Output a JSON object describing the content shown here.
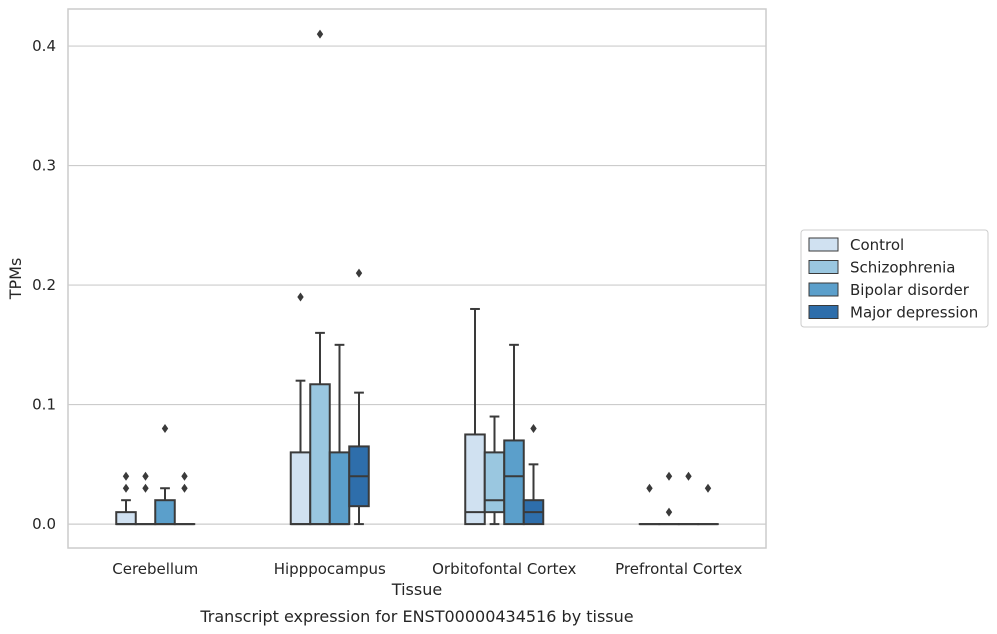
{
  "caption": "Transcript expression for ENST00000434516 by tissue",
  "chart_data": {
    "type": "box",
    "xlabel": "Tissue",
    "ylabel": "TPMs",
    "ylim": [
      -0.02,
      0.431
    ],
    "yticks": [
      0.0,
      0.1,
      0.2,
      0.3,
      0.4
    ],
    "ytick_labels": [
      "0.0",
      "0.1",
      "0.2",
      "0.3",
      "0.4"
    ],
    "grid": "horizontal",
    "legend_position": "right",
    "categories": [
      "Cerebellum",
      "Hipppocampus",
      "Orbitofontal Cortex",
      "Prefrontal Cortex"
    ],
    "series": [
      {
        "name": "Control",
        "color": "#d0e1f1",
        "boxes": [
          {
            "whislo": 0.0,
            "q1": 0.0,
            "med": 0.0,
            "q3": 0.01,
            "whishi": 0.02,
            "fliers": [
              0.03,
              0.04
            ]
          },
          {
            "whislo": 0.0,
            "q1": 0.0,
            "med": 0.0,
            "q3": 0.06,
            "whishi": 0.12,
            "fliers": [
              0.19
            ]
          },
          {
            "whislo": 0.0,
            "q1": 0.0,
            "med": 0.01,
            "q3": 0.075,
            "whishi": 0.18,
            "fliers": []
          },
          {
            "whislo": 0.0,
            "q1": 0.0,
            "med": 0.0,
            "q3": 0.0,
            "whishi": 0.0,
            "fliers": [
              0.03
            ]
          }
        ]
      },
      {
        "name": "Schizophrenia",
        "color": "#9ac7e0",
        "boxes": [
          {
            "whislo": 0.0,
            "q1": 0.0,
            "med": 0.0,
            "q3": 0.0,
            "whishi": 0.0,
            "fliers": [
              0.03,
              0.04
            ]
          },
          {
            "whislo": 0.0,
            "q1": 0.0,
            "med": 0.0,
            "q3": 0.117,
            "whishi": 0.16,
            "fliers": [
              0.41
            ]
          },
          {
            "whislo": 0.0,
            "q1": 0.01,
            "med": 0.02,
            "q3": 0.06,
            "whishi": 0.09,
            "fliers": []
          },
          {
            "whislo": 0.0,
            "q1": 0.0,
            "med": 0.0,
            "q3": 0.0,
            "whishi": 0.0,
            "fliers": [
              0.01,
              0.04
            ]
          }
        ]
      },
      {
        "name": "Bipolar disorder",
        "color": "#5b9fcb",
        "boxes": [
          {
            "whislo": 0.0,
            "q1": 0.0,
            "med": 0.0,
            "q3": 0.02,
            "whishi": 0.03,
            "fliers": [
              0.08
            ]
          },
          {
            "whislo": 0.0,
            "q1": 0.0,
            "med": 0.0,
            "q3": 0.06,
            "whishi": 0.15,
            "fliers": []
          },
          {
            "whislo": 0.0,
            "q1": 0.0,
            "med": 0.04,
            "q3": 0.07,
            "whishi": 0.15,
            "fliers": []
          },
          {
            "whislo": 0.0,
            "q1": 0.0,
            "med": 0.0,
            "q3": 0.0,
            "whishi": 0.0,
            "fliers": [
              0.04
            ]
          }
        ]
      },
      {
        "name": "Major depression",
        "color": "#2e6eab",
        "boxes": [
          {
            "whislo": 0.0,
            "q1": 0.0,
            "med": 0.0,
            "q3": 0.0,
            "whishi": 0.0,
            "fliers": [
              0.03,
              0.04
            ]
          },
          {
            "whislo": 0.0,
            "q1": 0.015,
            "med": 0.04,
            "q3": 0.065,
            "whishi": 0.11,
            "fliers": [
              0.21
            ]
          },
          {
            "whislo": 0.0,
            "q1": 0.0,
            "med": 0.01,
            "q3": 0.02,
            "whishi": 0.05,
            "fliers": [
              0.08
            ]
          },
          {
            "whislo": 0.0,
            "q1": 0.0,
            "med": 0.0,
            "q3": 0.0,
            "whishi": 0.0,
            "fliers": [
              0.03
            ]
          }
        ]
      }
    ]
  }
}
